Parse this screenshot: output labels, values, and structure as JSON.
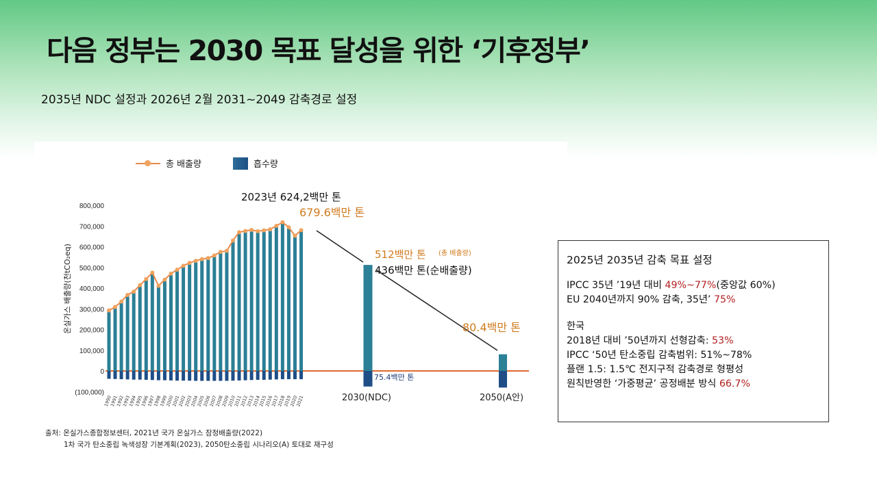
{
  "page": {
    "title": "다음 정부는 2030 목표 달성을 위한 ‘기후정부’",
    "subtitle": "2035년 NDC 설정과 2026년 2월 2031~2049 감축경로 설정"
  },
  "colors": {
    "total_line": "#e8894a",
    "total_marker": "#f0a35e",
    "bar_fill": "#2b7f96",
    "absorption_fill": "#1f4e87",
    "zero_line": "#e06a2c",
    "highlight_red": "#b01e1e",
    "orange_text": "#d07a1e"
  },
  "chart_data": {
    "type": "bar",
    "legend": {
      "total": "총 배출량",
      "absorption": "흡수량"
    },
    "ylabel": "온실가스 배출량(천tCO₂eq)",
    "ylim": [
      -100000,
      800000
    ],
    "yticks": [
      "(100,000)",
      "0",
      "100,000",
      "200,000",
      "300,000",
      "400,000",
      "500,000",
      "600,000",
      "700,000",
      "800,000"
    ],
    "categories": [
      "1990",
      "1991",
      "1992",
      "1993",
      "1994",
      "1995",
      "1996",
      "1997",
      "1998",
      "1999",
      "2000",
      "2001",
      "2002",
      "2003",
      "2004",
      "2005",
      "2006",
      "2007",
      "2008",
      "2009",
      "2010",
      "2011",
      "2012",
      "2013",
      "2014",
      "2015",
      "2016",
      "2017",
      "2018",
      "2019",
      "2020",
      "2021"
    ],
    "series": [
      {
        "name": "총 배출량",
        "values": [
          292000,
          309000,
          335000,
          367000,
          383000,
          414000,
          444000,
          475000,
          411000,
          441000,
          470000,
          489000,
          508000,
          522000,
          532000,
          540000,
          545000,
          558000,
          575000,
          580000,
          630000,
          670000,
          676000,
          681000,
          675000,
          679000,
          684000,
          701000,
          718000,
          694000,
          653000,
          679600
        ]
      },
      {
        "name": "흡수량",
        "values": [
          -38000,
          -39000,
          -40000,
          -41000,
          -42000,
          -42000,
          -43000,
          -44000,
          -45000,
          -45000,
          -46000,
          -47000,
          -47000,
          -47000,
          -48000,
          -48000,
          -48000,
          -48000,
          -48000,
          -48000,
          -47000,
          -46000,
          -45000,
          -44000,
          -43000,
          -43000,
          -42000,
          -41000,
          -40000,
          -40000,
          -40000,
          -40000
        ]
      }
    ],
    "targets": [
      {
        "label": "2030(NDC)",
        "total": 512000,
        "absorption": -75400
      },
      {
        "label": "2050(A안)",
        "total": 80400,
        "absorption": -80400
      }
    ],
    "annotations": {
      "y2023": "2023년 624,2백만 톤",
      "y2021": "679.6백만 톤",
      "ndc_total": "512백만 톤",
      "ndc_total_note": "(총 배출량)",
      "ndc_net": "436백만 톤(순배출량)",
      "ndc_absorption": "75.4백만 톤",
      "y2050": "80.4백만 톤"
    }
  },
  "source": {
    "line1": "출처: 온실가스종합정보센터, 2021년 국가 온실가스 잠정배출량(2022)",
    "line2": "1차 국가 탄소중립 녹색성장 기본계획(2023), 2050탄소중립 시나리오(A) 토대로 재구성"
  },
  "goal_box": {
    "title": "2025년 2035년 감축 목표 설정",
    "ipcc_prefix": "IPCC 35년 ’19년 대비 ",
    "ipcc_highlight": "49%~77%",
    "ipcc_suffix": "(중앙값 60%)",
    "eu_prefix": "EU 2040년까지 90% 감축, 35년’ ",
    "eu_highlight": "75%",
    "korea_heading": "한국",
    "linear_prefix": "2018년 대비 ’50년까지 선형감축: ",
    "linear_highlight": "53%",
    "ipcc_range": "IPCC ‘50년 탄소중립 감축범위: 51%~78%",
    "planet": "플랜 1.5: 1.5℃ 전지구적 감축경로 형평성",
    "principle_prefix": "원칙반영한 ‘가중평균’ 공정배분 방식 ",
    "principle_highlight": "66.7%"
  }
}
